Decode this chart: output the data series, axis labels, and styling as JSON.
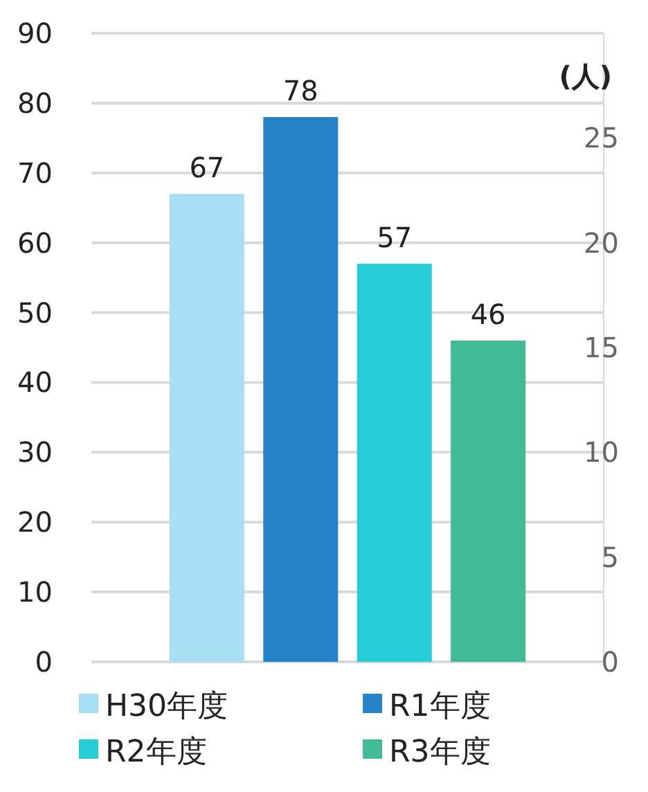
{
  "chart_data": {
    "type": "bar",
    "y2label": "(人)",
    "categories": [
      null
    ],
    "series": [
      {
        "name": "H30年度",
        "color": "#a6dff3",
        "values": [
          67
        ]
      },
      {
        "name": "R1年度",
        "color": "#2783c7",
        "values": [
          78
        ]
      },
      {
        "name": "R2年度",
        "color": "#27cdd6",
        "values": [
          57
        ]
      },
      {
        "name": "R3年度",
        "color": "#42ba96",
        "values": [
          46
        ]
      }
    ],
    "ylim": [
      0,
      90
    ],
    "yticks": [
      0,
      10,
      20,
      30,
      40,
      50,
      60,
      70,
      80,
      90
    ],
    "y2lim": [
      0,
      30
    ],
    "y2ticks": [
      0,
      5,
      10,
      15,
      20,
      25
    ],
    "data_labels": true,
    "grid": "y",
    "legend": "bottom"
  }
}
